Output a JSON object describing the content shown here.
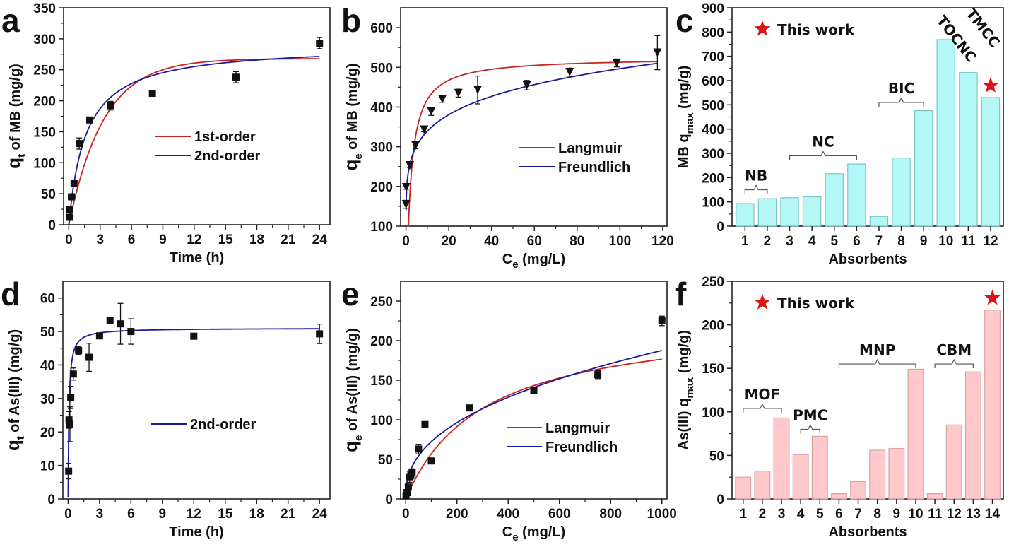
{
  "figure": {
    "panels": [
      "a",
      "b",
      "c",
      "d",
      "e",
      "f"
    ]
  },
  "chart_data": [
    {
      "id": "a",
      "letter": "a",
      "type": "scatter",
      "title": "",
      "xlabel": "Time (h)",
      "ylabel_main": "q",
      "ylabel_sub": "t",
      "ylabel_rest": " of MB (mg/g)",
      "xlim": [
        -0.5,
        25
      ],
      "ylim": [
        0,
        350
      ],
      "xticks": [
        0,
        3,
        6,
        9,
        12,
        15,
        18,
        21,
        24
      ],
      "yticks": [
        0,
        50,
        100,
        150,
        200,
        250,
        300,
        350
      ],
      "marker": "square",
      "points": {
        "x": [
          0.05,
          0.1,
          0.25,
          0.5,
          1,
          2,
          4,
          8,
          16,
          24
        ],
        "y": [
          12,
          25,
          45,
          67,
          131,
          169,
          192,
          212,
          238,
          293
        ],
        "err": [
          3,
          3,
          4,
          4,
          9,
          3,
          7,
          4,
          9,
          9
        ]
      },
      "series": [
        {
          "name": "1st-order",
          "color": "#cc2222",
          "model": "pfo",
          "qe": 268,
          "k": 0.3
        },
        {
          "name": "2nd-order",
          "color": "#1a1a9c",
          "model": "pso",
          "qe": 290,
          "k": 0.0021
        }
      ],
      "legend": "center-right"
    },
    {
      "id": "b",
      "letter": "b",
      "type": "scatter",
      "xlabel_main": "C",
      "xlabel_sub": "e",
      "xlabel_rest": " (mg/L)",
      "ylabel_main": "q",
      "ylabel_sub": "e",
      "ylabel_rest": " of MB (mg/g)",
      "xlim": [
        -2.5,
        122
      ],
      "ylim": [
        100,
        650
      ],
      "xticks": [
        0,
        20,
        40,
        60,
        80,
        100,
        120
      ],
      "yticks": [
        100,
        200,
        300,
        400,
        500,
        600
      ],
      "marker": "triangle-down",
      "points": {
        "x": [
          0,
          0.1,
          1.8,
          4.5,
          8.5,
          11.8,
          17,
          24.5,
          33.5,
          56.5,
          76.5,
          98.5,
          117.5
        ],
        "y": [
          155,
          198,
          253,
          303,
          343,
          389,
          420,
          435,
          443,
          455,
          488,
          511,
          537
        ],
        "err": [
          10,
          5,
          5,
          8,
          5,
          10,
          8,
          10,
          35,
          12,
          10,
          10,
          43
        ]
      },
      "series": [
        {
          "name": "Langmuir",
          "color": "#cc2222",
          "model": "langmuir",
          "qm": 525,
          "kl": 0.42,
          "shift": 0.6
        },
        {
          "name": "Freundlich",
          "color": "#1a1a9c",
          "model": "freundlich",
          "kf": 232,
          "n": 6.05
        }
      ],
      "legend": "center-right"
    },
    {
      "id": "c",
      "letter": "c",
      "type": "bar",
      "xlabel": "Absorbents",
      "ylabel_prefix": "MB  q",
      "ylabel_sub": "max",
      "ylabel_rest": " (mg/g)",
      "ylim": [
        0,
        900
      ],
      "yticks": [
        0,
        100,
        200,
        300,
        400,
        500,
        600,
        700,
        800,
        900
      ],
      "categories": [
        "1",
        "2",
        "3",
        "4",
        "5",
        "6",
        "7",
        "8",
        "9",
        "10",
        "11",
        "12"
      ],
      "values": [
        93,
        113,
        117,
        121,
        216,
        256,
        40,
        281,
        476,
        769,
        633,
        530
      ],
      "bar_color": "#b3f7f7",
      "bar_edge": "#7fc4c4",
      "legend_label": "This work",
      "star_color": "#e01010",
      "highlight_index": 11,
      "groups": [
        {
          "label": "NB",
          "from": 1,
          "to": 2,
          "y": 150
        },
        {
          "label": "NC",
          "from": 3,
          "to": 6,
          "y": 290
        },
        {
          "label": "BIC",
          "from": 7,
          "to": 9,
          "y": 510
        }
      ],
      "rotated_labels": [
        {
          "label": "TOCNC",
          "index": 10
        },
        {
          "label": "TMCC",
          "index": 11
        }
      ]
    },
    {
      "id": "d",
      "letter": "d",
      "type": "scatter",
      "xlabel": "Time (h)",
      "ylabel_main": "q",
      "ylabel_sub": "t",
      "ylabel_rest": " of As(III) (mg/g)",
      "xlim": [
        -0.5,
        25
      ],
      "ylim": [
        0,
        65
      ],
      "xticks": [
        0,
        3,
        6,
        9,
        12,
        15,
        18,
        21,
        24
      ],
      "yticks": [
        0,
        10,
        20,
        30,
        40,
        50,
        60
      ],
      "marker": "square",
      "points": {
        "x": [
          0.05,
          0.083,
          0.17,
          0.25,
          0.5,
          1,
          2,
          3,
          4,
          5,
          6,
          12,
          24
        ],
        "y": [
          8.3,
          23.6,
          22.3,
          30.3,
          37.3,
          44.3,
          42.3,
          48.7,
          53.4,
          52.3,
          50,
          48.6,
          49.3
        ],
        "err": [
          2.3,
          2.5,
          5.2,
          3.3,
          1.8,
          1.2,
          4.2,
          0.6,
          0.5,
          6.1,
          3.8,
          0.6,
          2.9
        ]
      },
      "series": [
        {
          "name": "2nd-order",
          "color": "#1a1a9c",
          "model": "pso",
          "qe": 51,
          "k": 0.23
        }
      ],
      "legend": "center-right"
    },
    {
      "id": "e",
      "letter": "e",
      "type": "scatter",
      "xlabel_main": "C",
      "xlabel_sub": "e",
      "xlabel_rest": " (mg/L)",
      "ylabel_main": "q",
      "ylabel_sub": "e",
      "ylabel_rest": " of As(III) (mg/g)",
      "xlim": [
        -20,
        1020
      ],
      "ylim": [
        0,
        275
      ],
      "xticks": [
        0,
        200,
        400,
        600,
        800,
        1000
      ],
      "yticks": [
        0,
        50,
        100,
        150,
        200,
        250
      ],
      "marker": "square",
      "points": {
        "x": [
          1,
          5,
          10,
          15,
          20,
          25,
          50,
          75,
          100,
          250,
          500,
          750,
          1000
        ],
        "y": [
          4,
          8,
          15,
          28,
          30,
          34,
          63,
          94,
          48,
          115,
          137,
          157,
          225
        ],
        "err": [
          2,
          2,
          3,
          7,
          5,
          4,
          6,
          2,
          2,
          3,
          3,
          5,
          6
        ]
      },
      "series": [
        {
          "name": "Langmuir",
          "color": "#cc2222",
          "model": "langmuir",
          "qm": 230,
          "kl": 0.0033,
          "shift": 0
        },
        {
          "name": "Freundlich",
          "color": "#1a1a9c",
          "model": "freundlich",
          "kf": 10.8,
          "n": 2.42
        }
      ],
      "legend": "center-right"
    },
    {
      "id": "f",
      "letter": "f",
      "type": "bar",
      "xlabel": "Absorbents",
      "ylabel_prefix": "As(III)  q",
      "ylabel_sub": "max",
      "ylabel_rest": " (mg/g)",
      "ylim": [
        0,
        250
      ],
      "yticks": [
        0,
        50,
        100,
        150,
        200,
        250
      ],
      "categories": [
        "1",
        "2",
        "3",
        "4",
        "5",
        "6",
        "7",
        "8",
        "9",
        "10",
        "11",
        "12",
        "13",
        "14"
      ],
      "values": [
        25,
        32,
        93,
        51,
        72,
        6,
        20,
        56,
        58,
        149,
        6,
        85,
        146,
        217
      ],
      "bar_color": "#ffc9cc",
      "bar_edge": "#d9a3a6",
      "legend_label": "This work",
      "star_color": "#e01010",
      "highlight_index": 13,
      "groups": [
        {
          "label": "MOF",
          "from": 1,
          "to": 3,
          "y": 104
        },
        {
          "label": "PMC",
          "from": 4,
          "to": 5,
          "y": 80
        },
        {
          "label": "MNP",
          "from": 6,
          "to": 10,
          "y": 155
        },
        {
          "label": "CBM",
          "from": 11,
          "to": 13,
          "y": 155
        }
      ],
      "rotated_labels": []
    }
  ]
}
